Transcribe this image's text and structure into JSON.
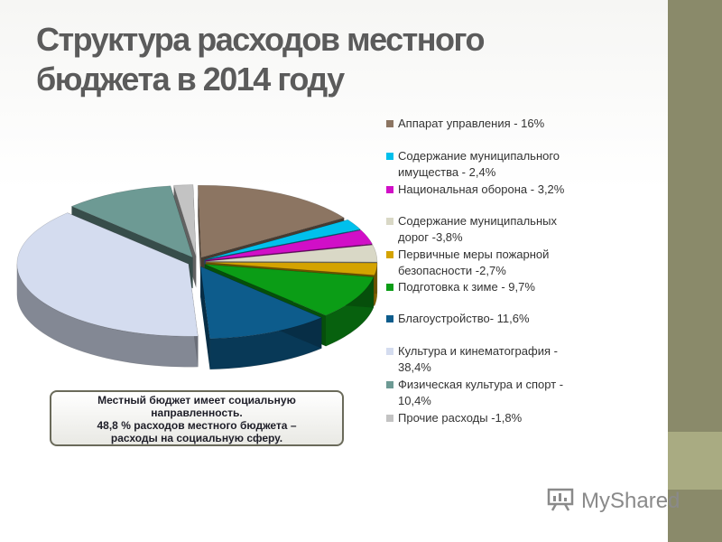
{
  "title": {
    "line1": "Структура расходов местного",
    "line2": "бюджета в 2014 году"
  },
  "callout": {
    "line1": "Местный бюджет имеет социальную",
    "line2": "направленность.",
    "line3": "48,8 % расходов местного бюджета –",
    "line4": "расходы на социальную сферу."
  },
  "watermark": {
    "text": "MyShared",
    "icon": "presentation-board-icon"
  },
  "colors": {
    "side_bar": "#8a8a6a",
    "title": "#5b5b5b"
  },
  "chart_data": {
    "type": "pie",
    "style": "3d-exploded",
    "legend_position": "right",
    "series": [
      {
        "legend": [
          "Аппарат управления - 16%"
        ],
        "value": 16,
        "color": "#8c7562"
      },
      {
        "legend": [
          "Содержание муниципального",
          "имущества - 2,4%"
        ],
        "value": 2.4,
        "color": "#00c0ec"
      },
      {
        "legend": [
          "Национальная оборона - 3,2%"
        ],
        "value": 3.2,
        "color": "#d10fc7"
      },
      {
        "legend": [
          "Содержание муниципальных",
          "дорог -3,8%"
        ],
        "value": 3.8,
        "color": "#d9d8c6"
      },
      {
        "legend": [
          "Первичные меры пожарной",
          "безопасности -2,7%"
        ],
        "value": 2.7,
        "color": "#d4a300"
      },
      {
        "legend": [
          "Подготовка к зиме - 9,7%"
        ],
        "value": 9.7,
        "color": "#0b9d16"
      },
      {
        "legend": [
          "Благоустройство- 11,6%"
        ],
        "value": 11.6,
        "color": "#0d5c8c"
      },
      {
        "legend": [
          "Культура и кинематография -",
          "38,4%"
        ],
        "value": 38.4,
        "color": "#d4dcef"
      },
      {
        "legend": [
          "Физическая культура и спорт -",
          "10,4%"
        ],
        "value": 10.4,
        "color": "#6d9a94"
      },
      {
        "legend": [
          "Прочие расходы -1,8%"
        ],
        "value": 1.8,
        "color": "#c3c3c3"
      }
    ]
  }
}
